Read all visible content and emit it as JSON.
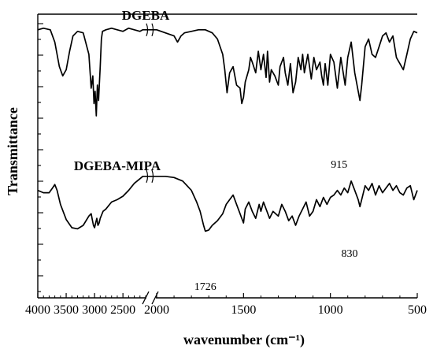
{
  "chart_data": {
    "type": "line",
    "title": "",
    "xlabel": "wavenumber (cm⁻¹)",
    "ylabel": "Transmittance",
    "x_axis": {
      "reversed": true,
      "broken": true,
      "segments": [
        [
          4000,
          2100
        ],
        [
          2000,
          500
        ]
      ]
    },
    "x_ticks": [
      4000,
      3500,
      3000,
      2500,
      2000,
      1500,
      1000,
      500
    ],
    "x_tick_labels": [
      "4000",
      "3500",
      "3000",
      "2500",
      "2000",
      "1500",
      "1000",
      "500"
    ],
    "y_ticks_unlabeled": true,
    "grid": false,
    "series": [
      {
        "name": "DGEBA",
        "x": [
          4000,
          3900,
          3780,
          3700,
          3620,
          3560,
          3500,
          3440,
          3380,
          3300,
          3200,
          3100,
          3060,
          3030,
          3010,
          2990,
          2970,
          2950,
          2930,
          2900,
          2880,
          2860,
          2800,
          2700,
          2600,
          2500,
          2400,
          2300,
          2200,
          2150,
          2100,
          2000,
          1950,
          1900,
          1880,
          1860,
          1840,
          1800,
          1760,
          1720,
          1680,
          1650,
          1620,
          1608,
          1595,
          1580,
          1560,
          1540,
          1520,
          1510,
          1500,
          1490,
          1470,
          1460,
          1450,
          1430,
          1415,
          1400,
          1385,
          1370,
          1362,
          1350,
          1340,
          1320,
          1300,
          1290,
          1270,
          1260,
          1245,
          1230,
          1215,
          1200,
          1185,
          1170,
          1160,
          1150,
          1140,
          1130,
          1110,
          1095,
          1080,
          1060,
          1050,
          1040,
          1030,
          1015,
          1000,
          980,
          960,
          940,
          915,
          900,
          880,
          860,
          840,
          830,
          820,
          800,
          780,
          760,
          740,
          720,
          700,
          680,
          660,
          640,
          620,
          600,
          580,
          560,
          540,
          520,
          500
        ],
        "y": [
          96,
          97,
          96,
          88,
          72,
          66,
          70,
          82,
          92,
          95,
          94,
          80,
          58,
          66,
          48,
          56,
          40,
          60,
          50,
          72,
          90,
          95,
          96,
          97,
          96,
          95,
          97,
          96,
          95,
          96,
          96,
          96,
          94,
          92,
          88,
          92,
          94,
          95,
          96,
          96,
          94,
          90,
          80,
          70,
          55,
          68,
          72,
          60,
          58,
          48,
          52,
          62,
          70,
          78,
          75,
          68,
          82,
          70,
          80,
          65,
          82,
          62,
          70,
          66,
          60,
          72,
          78,
          68,
          60,
          74,
          55,
          62,
          78,
          70,
          80,
          68,
          74,
          80,
          64,
          78,
          70,
          75,
          66,
          60,
          74,
          60,
          80,
          75,
          58,
          78,
          60,
          78,
          88,
          68,
          56,
          50,
          60,
          85,
          90,
          80,
          78,
          85,
          92,
          94,
          88,
          92,
          78,
          74,
          70,
          80,
          90,
          95,
          94
        ]
      },
      {
        "name": "DGEBA-MIPA",
        "x": [
          4000,
          3900,
          3800,
          3740,
          3700,
          3660,
          3600,
          3500,
          3400,
          3300,
          3200,
          3100,
          3060,
          3040,
          3020,
          3000,
          2980,
          2960,
          2940,
          2920,
          2900,
          2850,
          2800,
          2700,
          2600,
          2500,
          2400,
          2300,
          2200,
          2150,
          2100,
          2000,
          1950,
          1900,
          1850,
          1800,
          1770,
          1750,
          1730,
          1720,
          1700,
          1680,
          1650,
          1620,
          1600,
          1580,
          1560,
          1540,
          1520,
          1500,
          1490,
          1470,
          1450,
          1430,
          1410,
          1400,
          1385,
          1370,
          1350,
          1330,
          1300,
          1280,
          1260,
          1240,
          1220,
          1200,
          1180,
          1160,
          1140,
          1120,
          1100,
          1080,
          1060,
          1040,
          1020,
          1000,
          980,
          960,
          940,
          920,
          900,
          880,
          860,
          840,
          830,
          820,
          800,
          780,
          760,
          740,
          720,
          700,
          680,
          660,
          640,
          620,
          600,
          580,
          560,
          540,
          520,
          500
        ],
        "y": [
          80,
          78,
          78,
          82,
          85,
          80,
          68,
          55,
          48,
          47,
          50,
          58,
          60,
          55,
          50,
          48,
          52,
          56,
          50,
          52,
          56,
          62,
          64,
          70,
          72,
          75,
          80,
          86,
          90,
          92,
          92,
          92,
          92,
          91,
          88,
          80,
          70,
          62,
          50,
          45,
          46,
          50,
          54,
          60,
          68,
          72,
          76,
          68,
          60,
          52,
          64,
          70,
          62,
          56,
          68,
          62,
          70,
          64,
          56,
          62,
          58,
          68,
          62,
          54,
          58,
          50,
          58,
          64,
          70,
          58,
          62,
          72,
          66,
          74,
          68,
          74,
          76,
          80,
          76,
          82,
          78,
          88,
          80,
          72,
          66,
          72,
          84,
          80,
          86,
          76,
          84,
          78,
          82,
          86,
          80,
          84,
          78,
          76,
          82,
          84,
          72,
          80
        ]
      }
    ],
    "annotations": [
      {
        "text": "DGEBA",
        "x": 2100,
        "y": 101
      },
      {
        "text": "DGEBA-MIPA",
        "x": 2600,
        "y": 98
      },
      {
        "text": "915",
        "x": 950,
        "y": 54
      },
      {
        "text": "1726",
        "x": 1720,
        "y": 40
      },
      {
        "text": "830",
        "x": 890,
        "y": 61
      }
    ]
  }
}
